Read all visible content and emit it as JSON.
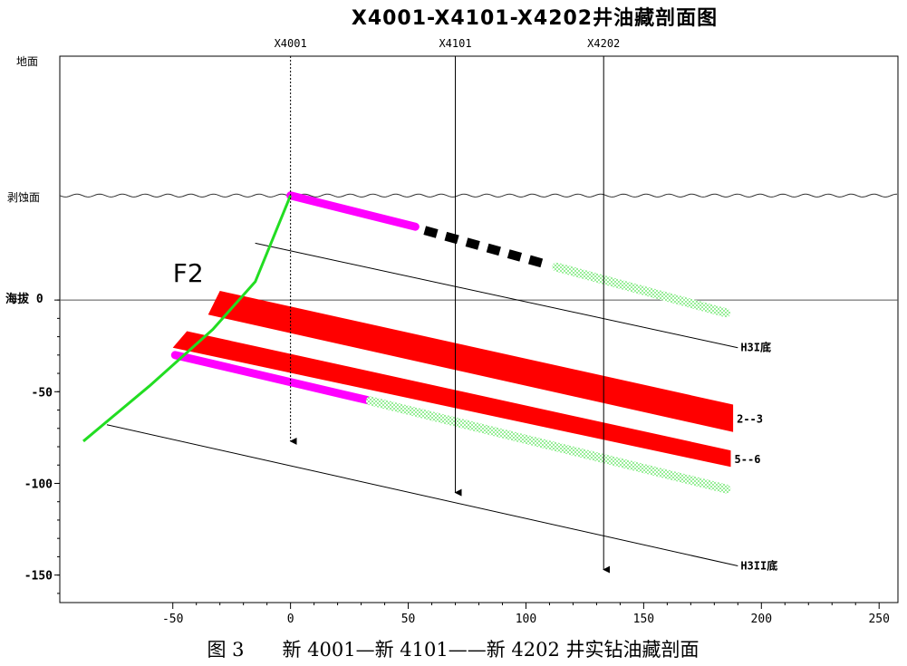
{
  "title": "X4001-X4101-X4202井油藏剖面图",
  "caption": "图 3　　新 4001—新 4101——新 4202 井实钻油藏剖面",
  "colors": {
    "oil": "#ff0000",
    "fault": "#22dd22",
    "oil_water": "#ff00ff",
    "dry": "#000000",
    "water": "#99ee99"
  },
  "chart_data": {
    "type": "cross-section",
    "x_ticks": [
      "-50",
      "0",
      "50",
      "100",
      "150",
      "200",
      "250"
    ],
    "y_ticks": [
      "0",
      "-50",
      "-100",
      "-150"
    ],
    "y_ref_labels": {
      "surface": "地面",
      "erosion": "剥蚀面",
      "sea": "海拔 0"
    },
    "xlim": [
      -98,
      258
    ],
    "ylim": [
      -165,
      133
    ],
    "erosion_level": 57,
    "fault": {
      "label": "F2",
      "points": [
        [
          -88,
          -77
        ],
        [
          -60,
          -47
        ],
        [
          -33,
          -16
        ],
        [
          -15,
          10
        ],
        [
          0,
          57
        ]
      ]
    },
    "wells": [
      {
        "name": "X4001",
        "x": 0,
        "top": 133,
        "bottom": -77,
        "dashed": true
      },
      {
        "name": "X4101",
        "x": 70,
        "top": 133,
        "bottom": -105,
        "dashed": false
      },
      {
        "name": "X4202",
        "x": 133,
        "top": 133,
        "bottom": -147,
        "dashed": false
      }
    ],
    "horizons": [
      {
        "name": "H3I底",
        "x": [
          -15,
          190
        ],
        "y": [
          31,
          -26
        ]
      },
      {
        "name": "H3II底",
        "x": [
          -78,
          190
        ],
        "y": [
          -68,
          -145
        ]
      }
    ],
    "oil_layers": [
      {
        "name": "2--3",
        "polygon": [
          [
            -30,
            5
          ],
          [
            188,
            -57
          ],
          [
            188,
            -72
          ],
          [
            -35,
            -8
          ]
        ]
      },
      {
        "name": "5--6",
        "polygon": [
          [
            -44,
            -17
          ],
          [
            187,
            -82
          ],
          [
            187,
            -91
          ],
          [
            -50,
            -26
          ]
        ]
      }
    ],
    "upper_interval": [
      {
        "kind": "oil_water",
        "x": [
          0,
          53
        ],
        "y": [
          57,
          40
        ]
      },
      {
        "kind": "dry",
        "x": [
          57,
          110
        ],
        "y": [
          38,
          19
        ]
      },
      {
        "kind": "water",
        "x": [
          113,
          185
        ],
        "y": [
          18,
          -7
        ]
      }
    ],
    "lower_interval": [
      {
        "kind": "oil_water",
        "x": [
          -49,
          34
        ],
        "y": [
          -30,
          -55
        ]
      },
      {
        "kind": "water",
        "x": [
          34,
          185
        ],
        "y": [
          -55,
          -103
        ]
      }
    ]
  }
}
